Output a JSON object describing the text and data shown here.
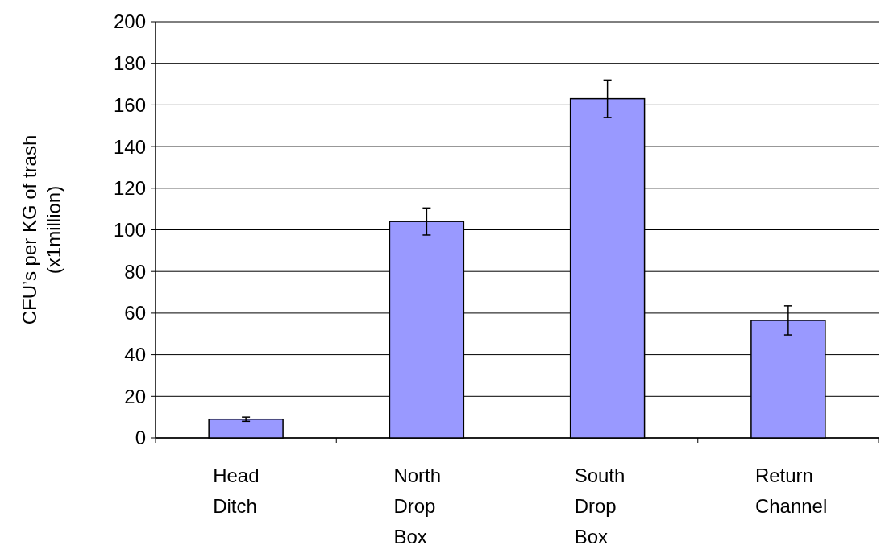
{
  "chart_data": {
    "type": "bar",
    "ylabel": "CFU’s per KG of trash\n(x1million)",
    "categories": [
      "Head Ditch",
      "North Drop Box",
      "South Drop Box",
      "Return Channel"
    ],
    "values": [
      9,
      104,
      163,
      56.5
    ],
    "errors": [
      1,
      6.5,
      9,
      7
    ],
    "color": "#9999ff",
    "ylim": [
      0,
      200
    ],
    "yticks": [
      0,
      20,
      40,
      60,
      80,
      100,
      120,
      140,
      160,
      180,
      200
    ],
    "grid": "y"
  }
}
